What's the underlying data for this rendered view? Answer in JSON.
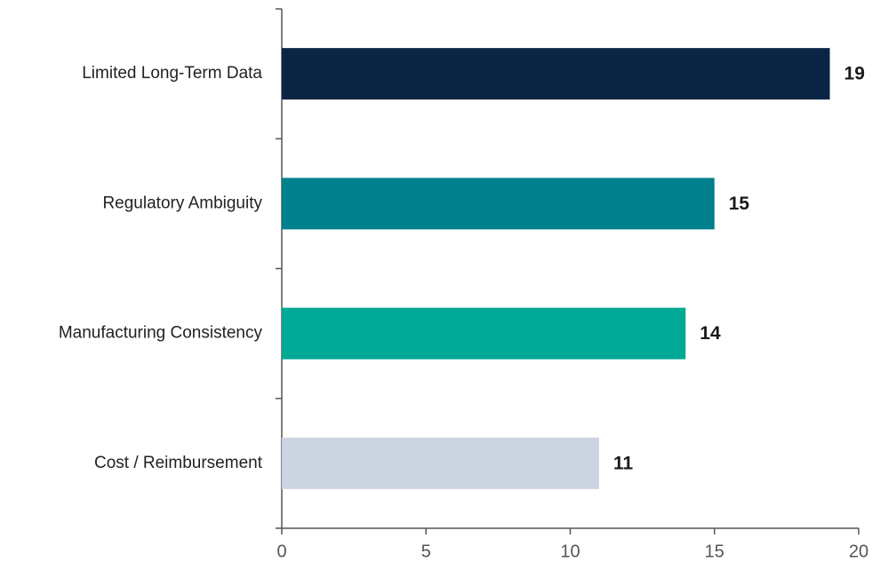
{
  "chart_data": {
    "type": "barh",
    "categories": [
      "Limited Long-Term Data",
      "Regulatory Ambiguity",
      "Manufacturing Consistency",
      "Cost / Reimbursement"
    ],
    "values": [
      19,
      15,
      14,
      11
    ],
    "colors": [
      "#0b2545",
      "#007f8c",
      "#00a896",
      "#cbd5e1"
    ],
    "xlim": [
      0,
      20
    ],
    "xticks": [
      0,
      5,
      10,
      15,
      20
    ],
    "grid": false
  }
}
